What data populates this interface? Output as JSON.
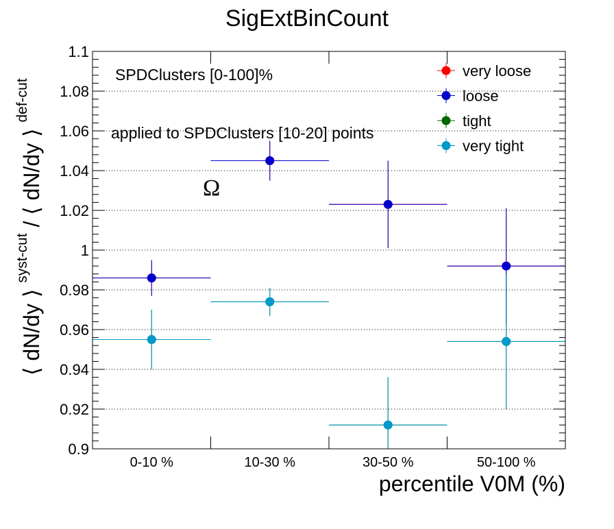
{
  "chart_data": {
    "type": "scatter",
    "title": "SigExtBinCount",
    "xlabel": "percentile V0M (%)",
    "ylabel": {
      "open1": "⟨ dN/dy ⟩",
      "sup1": "syst-cut",
      "slash": " / ",
      "open2": "⟨ dN/dy ⟩",
      "sup2": "def-cut"
    },
    "categories": [
      "0-10 %",
      "10-30 %",
      "30-50 %",
      "50-100 %"
    ],
    "ylim": [
      0.9,
      1.1
    ],
    "yticks": [
      "0.9",
      "0.92",
      "0.94",
      "0.96",
      "0.98",
      "1",
      "1.02",
      "1.04",
      "1.06",
      "1.08",
      "1.1"
    ],
    "grid": "horizontal",
    "legend_position": "top-right",
    "annotations": {
      "estimator": "SPDClusters [0-100]%",
      "applied": "applied to SPDClusters [10-20] points",
      "particle": "Ω"
    },
    "series": [
      {
        "name": "very loose",
        "color": "#ff0000",
        "values": [
          0.986,
          1.045,
          1.023,
          0.992
        ],
        "errors": [
          0.009,
          0.01,
          0.022,
          0.029
        ]
      },
      {
        "name": "loose",
        "color": "#0000cc",
        "values": [
          0.986,
          1.045,
          1.023,
          0.992
        ],
        "errors": [
          0.009,
          0.01,
          0.022,
          0.029
        ]
      },
      {
        "name": "tight",
        "color": "#006600",
        "values": [
          0.955,
          0.974,
          0.912,
          0.954
        ],
        "errors": [
          0.015,
          0.007,
          0.024,
          0.034
        ]
      },
      {
        "name": "very tight",
        "color": "#0099cc",
        "values": [
          0.955,
          0.974,
          0.912,
          0.954
        ],
        "errors": [
          0.015,
          0.007,
          0.024,
          0.034
        ]
      }
    ]
  }
}
